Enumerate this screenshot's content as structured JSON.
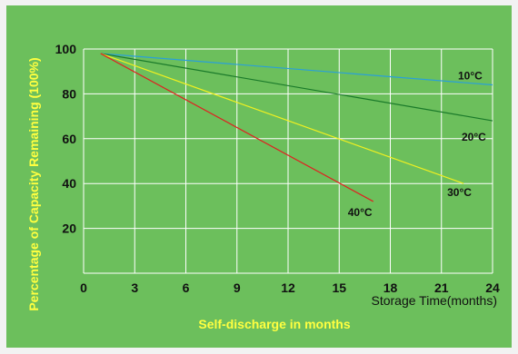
{
  "chart_data": {
    "type": "line",
    "title": "Self-discharge in months",
    "xlabel": "Storage Time(months)",
    "ylabel": "Percentage of Capacity Remaining (100%)",
    "xlim": [
      0,
      24
    ],
    "ylim": [
      0,
      100
    ],
    "x_ticks": [
      0,
      3,
      6,
      9,
      12,
      15,
      18,
      21,
      24
    ],
    "y_ticks": [
      20,
      40,
      60,
      80,
      100
    ],
    "grid": true,
    "series": [
      {
        "name": "10°C",
        "color": "#2aa0d8",
        "points": [
          [
            1,
            98
          ],
          [
            24,
            84
          ]
        ]
      },
      {
        "name": "20°C",
        "color": "#1a7a2a",
        "points": [
          [
            1,
            98
          ],
          [
            24,
            68
          ]
        ]
      },
      {
        "name": "30°C",
        "color": "#f0f020",
        "points": [
          [
            1,
            98
          ],
          [
            22.3,
            40
          ]
        ]
      },
      {
        "name": "40°C",
        "color": "#e02020",
        "points": [
          [
            1,
            98
          ],
          [
            17,
            32
          ]
        ]
      }
    ]
  },
  "colors": {
    "background": "#6cbf5c",
    "grid": "#ffffff",
    "title": "#ffff40"
  }
}
